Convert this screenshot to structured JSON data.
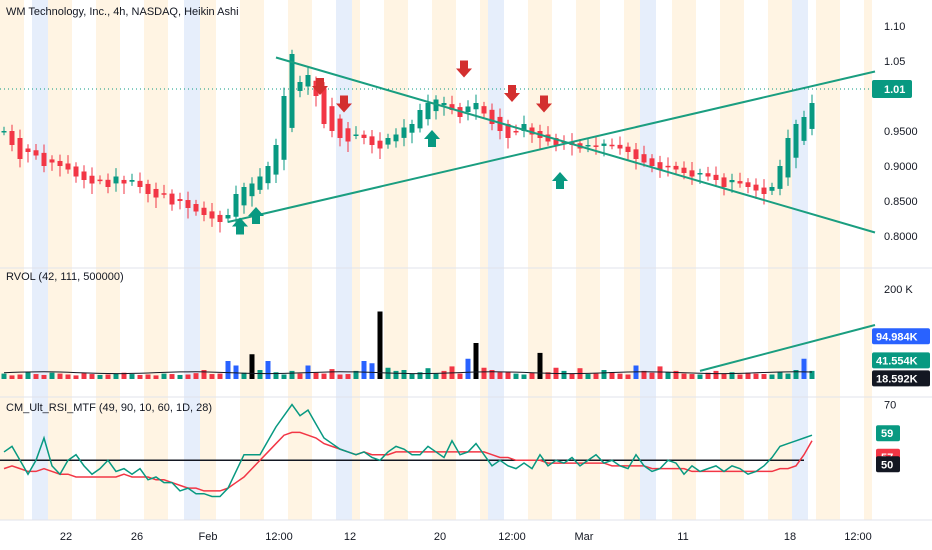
{
  "header": {
    "title": "WM Technology, Inc., 4h, NASDAQ, Heikin Ashi"
  },
  "colors": {
    "up": "#089981",
    "down": "#f23645",
    "rvol_high": "#2962ff",
    "rvol_extreme": "#000000",
    "trendline": "#1a9e80",
    "session_orange": "#fff3e0",
    "session_blue": "#e3ecfb",
    "rsi_line": "#089981",
    "rsi_signal": "#f23645",
    "rsi_mid": "#131722"
  },
  "chart_data": [
    {
      "type": "candlestick",
      "ylim": [
        0.78,
        1.12
      ],
      "y_ticks": [
        "1.10",
        "1.05",
        "1.01",
        "0.9500",
        "0.9000",
        "0.8500",
        "0.8000"
      ],
      "last_price": "1.01",
      "x_ticks": [
        "22",
        "26",
        "Feb",
        "12:00",
        "12",
        "20",
        "12:00",
        "Mar",
        "11",
        "18",
        "12:00"
      ],
      "close": [
        0.95,
        0.93,
        0.91,
        0.92,
        0.915,
        0.9,
        0.905,
        0.9,
        0.895,
        0.885,
        0.88,
        0.875,
        0.88,
        0.87,
        0.885,
        0.875,
        0.88,
        0.87,
        0.86,
        0.855,
        0.86,
        0.845,
        0.85,
        0.84,
        0.835,
        0.83,
        0.825,
        0.82,
        0.83,
        0.86,
        0.87,
        0.875,
        0.885,
        0.9,
        0.93,
        1.0,
        1.06,
        1.02,
        1.03,
        1.0,
        0.96,
        0.95,
        0.94,
        0.935,
        0.945,
        0.94,
        0.93,
        0.925,
        0.94,
        0.945,
        0.955,
        0.96,
        0.98,
        0.99,
        0.995,
        0.99,
        0.98,
        0.97,
        0.985,
        0.99,
        0.975,
        0.96,
        0.95,
        0.94,
        0.95,
        0.96,
        0.945,
        0.94,
        0.935,
        0.93,
        0.935,
        0.93,
        0.925,
        0.93,
        0.928,
        0.932,
        0.93,
        0.925,
        0.92,
        0.91,
        0.905,
        0.9,
        0.895,
        0.9,
        0.895,
        0.89,
        0.885,
        0.89,
        0.885,
        0.88,
        0.87,
        0.88,
        0.875,
        0.87,
        0.865,
        0.86,
        0.87,
        0.9,
        0.94,
        0.96,
        0.97,
        0.99
      ],
      "markers_sell": [
        40,
        43,
        58,
        64,
        68
      ],
      "markers_buy": [
        30,
        32,
        54,
        70
      ]
    },
    {
      "type": "bar",
      "name": "RVOL (42, 111, 500000)",
      "y_ticks": [
        "200 K"
      ],
      "tags": [
        "94.984K",
        "41.554K",
        "18.592K"
      ],
      "values": [
        12,
        8,
        10,
        15,
        11,
        9,
        14,
        12,
        10,
        8,
        13,
        11,
        9,
        10,
        12,
        14,
        11,
        9,
        10,
        8,
        12,
        11,
        9,
        10,
        13,
        20,
        11,
        12,
        40,
        30,
        14,
        55,
        20,
        40,
        15,
        10,
        18,
        12,
        30,
        14,
        12,
        22,
        10,
        11,
        18,
        40,
        35,
        150,
        25,
        18,
        20,
        12,
        15,
        24,
        12,
        18,
        28,
        12,
        45,
        80,
        25,
        20,
        15,
        15,
        12,
        10,
        14,
        58,
        15,
        25,
        18,
        12,
        24,
        11,
        12,
        20,
        15,
        12,
        10,
        30,
        18,
        14,
        28,
        15,
        18,
        12,
        11,
        10,
        14,
        18,
        12,
        15,
        10,
        14,
        12,
        11,
        10,
        16,
        12,
        20,
        45,
        18
      ]
    },
    {
      "type": "line",
      "name": "CM_Ult_RSI_MTF (49, 90, 10, 60, 1D, 28)",
      "y_ticks": [
        "70"
      ],
      "tags": [
        "59",
        "57",
        "50"
      ],
      "rsi": [
        53,
        55,
        50,
        45,
        50,
        58,
        48,
        45,
        50,
        52,
        48,
        45,
        47,
        50,
        46,
        47,
        45,
        47,
        43,
        44,
        42,
        42,
        39,
        40,
        38,
        38,
        37,
        37,
        40,
        46,
        52,
        52,
        52,
        57,
        62,
        66,
        70,
        66,
        68,
        63,
        58,
        56,
        54,
        53,
        52,
        53,
        51,
        50,
        53,
        55,
        54,
        52,
        52,
        55,
        53,
        51,
        57,
        52,
        53,
        56,
        52,
        48,
        50,
        48,
        47,
        49,
        47,
        52,
        48,
        50,
        49,
        51,
        48,
        50,
        52,
        49,
        50,
        48,
        47,
        52,
        48,
        46,
        47,
        50,
        49,
        45,
        48,
        46,
        47,
        48,
        46,
        48,
        47,
        45,
        46,
        48,
        51,
        55,
        56,
        57,
        58,
        59
      ],
      "signal": [
        47,
        48,
        47,
        46,
        46,
        47,
        46,
        45,
        45,
        44,
        44,
        44,
        44,
        44,
        44,
        45,
        44,
        44,
        44,
        43,
        43,
        42,
        41,
        40,
        40,
        39,
        39,
        39,
        40,
        42,
        44,
        47,
        50,
        53,
        56,
        59,
        60,
        60,
        59,
        58,
        56,
        55,
        54,
        53,
        52,
        53,
        52,
        52,
        52,
        53,
        53,
        53,
        53,
        53,
        53,
        53,
        53,
        53,
        53,
        53,
        53,
        52,
        51,
        51,
        50,
        50,
        50,
        50,
        49,
        49,
        49,
        49,
        49,
        49,
        49,
        49,
        48,
        48,
        48,
        48,
        48,
        47,
        47,
        47,
        47,
        47,
        46,
        46,
        46,
        46,
        46,
        46,
        46,
        46,
        46,
        46,
        46,
        47,
        47,
        48,
        52,
        57
      ],
      "mid": 50
    }
  ]
}
